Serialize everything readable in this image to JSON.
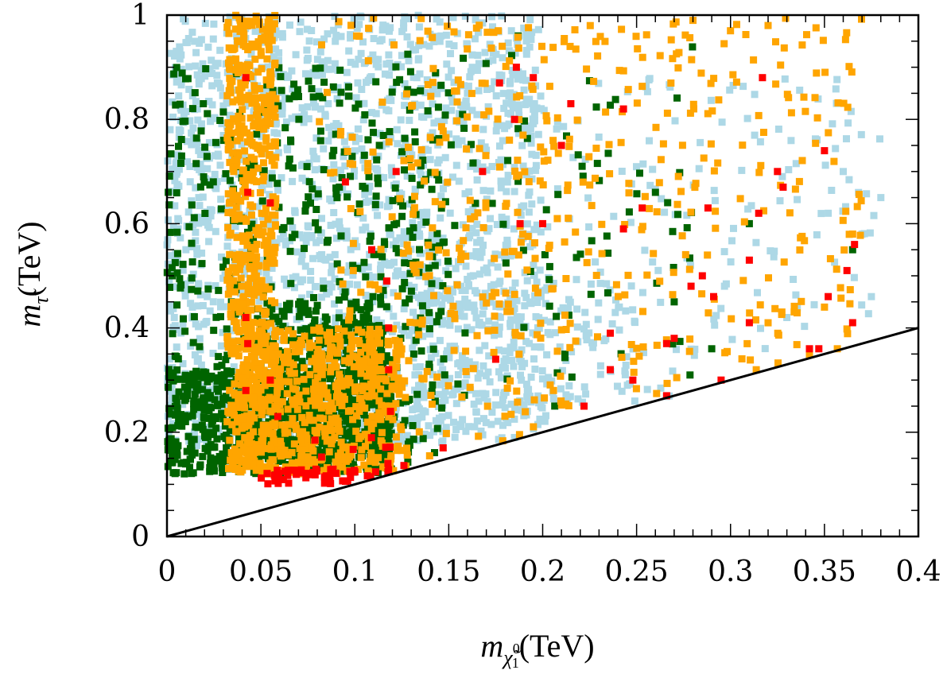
{
  "chart_data": {
    "type": "scatter",
    "title": "",
    "xlabel": {
      "symbol": "m",
      "subscript": "χ̃",
      "sub_sup": "0",
      "sub_sub": "1",
      "unit": "(TeV)"
    },
    "ylabel": {
      "symbol": "m",
      "subscript": "τ̃",
      "unit": "(TeV)"
    },
    "xlim": [
      0,
      0.4
    ],
    "ylim": [
      0,
      1
    ],
    "xticks": [
      0,
      0.05,
      0.1,
      0.15,
      0.2,
      0.25,
      0.3,
      0.35,
      0.4
    ],
    "xtick_labels": [
      "0",
      "0.05",
      "0.1",
      "0.15",
      "0.2",
      "0.25",
      "0.3",
      "0.35",
      "0.4"
    ],
    "yticks": [
      0,
      0.2,
      0.4,
      0.6,
      0.8,
      1
    ],
    "ytick_labels": [
      "0",
      "0.2",
      "0.4",
      "0.6",
      "0.8",
      "1"
    ],
    "x_minor_step": 0.01,
    "y_minor_step": 0.05,
    "colors": {
      "lightblue": "#add8e6",
      "darkgreen": "#006400",
      "orange": "#ffa500",
      "red": "#ff0000",
      "axis": "#000000"
    },
    "boundary_line": {
      "name": "m_stau = m_neutralino",
      "x": [
        0,
        0.4
      ],
      "y": [
        0,
        0.4
      ]
    },
    "series": [
      {
        "name": "lightblue",
        "color": "#add8e6",
        "regions": [
          {
            "n": 1600,
            "x": [
              0.0,
              0.2
            ],
            "y": [
              0.18,
              1.0
            ]
          },
          {
            "n": 240,
            "x": [
              0.12,
              0.38
            ],
            "y": [
              0.25,
              0.88
            ]
          },
          {
            "n": 180,
            "x": [
              0.13,
              0.25
            ],
            "y": [
              0.2,
              0.5
            ]
          },
          {
            "n": 60,
            "x": [
              0.0,
              0.02
            ],
            "y": [
              0.15,
              0.95
            ]
          }
        ],
        "points": [
          [
            0.375,
            0.46
          ],
          [
            0.38,
            0.65
          ],
          [
            0.37,
            0.58
          ],
          [
            0.36,
            0.7
          ],
          [
            0.33,
            0.42
          ],
          [
            0.352,
            0.62
          ]
        ]
      },
      {
        "name": "darkgreen",
        "color": "#006400",
        "regions": [
          {
            "n": 500,
            "x": [
              0.0,
              0.15
            ],
            "y": [
              0.12,
              0.9
            ]
          },
          {
            "n": 650,
            "x": [
              0.0,
              0.12
            ],
            "y": [
              0.12,
              0.32
            ]
          },
          {
            "n": 450,
            "x": [
              0.05,
              0.12
            ],
            "y": [
              0.15,
              0.45
            ]
          },
          {
            "n": 90,
            "x": [
              0.12,
              0.28
            ],
            "y": [
              0.2,
              0.95
            ]
          }
        ],
        "points": [
          [
            0.365,
            0.55
          ],
          [
            0.27,
            0.45
          ],
          [
            0.26,
            0.66
          ],
          [
            0.29,
            0.36
          ],
          [
            0.187,
            0.96
          ],
          [
            0.31,
            0.6
          ]
        ]
      },
      {
        "name": "orange",
        "color": "#ffa500",
        "regions": [
          {
            "n": 600,
            "x": [
              0.032,
              0.058
            ],
            "y": [
              0.12,
              1.0
            ]
          },
          {
            "n": 550,
            "x": [
              0.04,
              0.125
            ],
            "y": [
              0.12,
              0.4
            ]
          },
          {
            "n": 150,
            "x": [
              0.08,
              0.2
            ],
            "y": [
              0.12,
              1.0
            ]
          },
          {
            "n": 380,
            "x": [
              0.13,
              0.37
            ],
            "y": [
              0.25,
              1.0
            ]
          }
        ],
        "points": [
          [
            0.35,
            0.44
          ],
          [
            0.365,
            0.58
          ],
          [
            0.3,
            0.97
          ],
          [
            0.28,
            0.99
          ],
          [
            0.32,
            0.98
          ],
          [
            0.342,
            0.35
          ]
        ]
      },
      {
        "name": "red",
        "color": "#ff0000",
        "regions": [
          {
            "n": 60,
            "x": [
              0.05,
              0.12
            ],
            "y": [
              0.1,
              0.13
            ]
          },
          {
            "n": 8,
            "x": [
              0.06,
              0.13
            ],
            "y": [
              0.13,
              0.2
            ]
          }
        ],
        "points": [
          [
            0.042,
            0.88
          ],
          [
            0.043,
            0.66
          ],
          [
            0.055,
            0.64
          ],
          [
            0.042,
            0.42
          ],
          [
            0.043,
            0.37
          ],
          [
            0.042,
            0.28
          ],
          [
            0.055,
            0.3
          ],
          [
            0.059,
            0.23
          ],
          [
            0.095,
            0.68
          ],
          [
            0.109,
            0.55
          ],
          [
            0.117,
            0.49
          ],
          [
            0.118,
            0.4
          ],
          [
            0.118,
            0.32
          ],
          [
            0.119,
            0.24
          ],
          [
            0.122,
            0.7
          ],
          [
            0.147,
            0.17
          ],
          [
            0.168,
            0.7
          ],
          [
            0.185,
            0.8
          ],
          [
            0.177,
            0.87
          ],
          [
            0.186,
            0.9
          ],
          [
            0.195,
            0.88
          ],
          [
            0.175,
            0.34
          ],
          [
            0.2,
            0.6
          ],
          [
            0.21,
            0.75
          ],
          [
            0.215,
            0.83
          ],
          [
            0.222,
            0.25
          ],
          [
            0.236,
            0.32
          ],
          [
            0.236,
            0.39
          ],
          [
            0.243,
            0.82
          ],
          [
            0.248,
            0.3
          ],
          [
            0.253,
            0.63
          ],
          [
            0.27,
            0.38
          ],
          [
            0.266,
            0.27
          ],
          [
            0.279,
            0.48
          ],
          [
            0.285,
            0.5
          ],
          [
            0.288,
            0.63
          ],
          [
            0.291,
            0.46
          ],
          [
            0.295,
            0.3
          ],
          [
            0.31,
            0.53
          ],
          [
            0.31,
            0.41
          ],
          [
            0.317,
            0.88
          ],
          [
            0.325,
            0.7
          ],
          [
            0.328,
            0.67
          ],
          [
            0.342,
            0.36
          ],
          [
            0.347,
            0.36
          ],
          [
            0.35,
            0.74
          ],
          [
            0.352,
            0.46
          ],
          [
            0.362,
            0.51
          ],
          [
            0.366,
            0.56
          ],
          [
            0.365,
            0.41
          ],
          [
            0.315,
            0.62
          ],
          [
            0.188,
            0.6
          ],
          [
            0.266,
            0.37
          ],
          [
            0.243,
            0.59
          ]
        ]
      }
    ]
  }
}
